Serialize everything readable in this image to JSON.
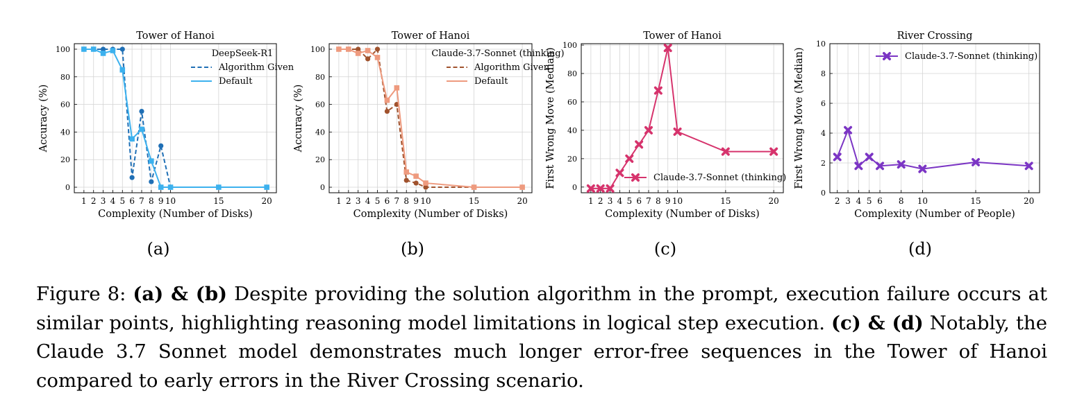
{
  "colors": {
    "a_algo": "#1f6fb5",
    "a_default": "#3cb1ee",
    "b_algo": "#a0522d",
    "b_default": "#ee9a7e",
    "c_line": "#d6336c",
    "d_line": "#7b35c4"
  },
  "subfigure_labels": [
    "(a)",
    "(b)",
    "(c)",
    "(d)"
  ],
  "caption": {
    "prefix": "Figure 8: ",
    "ab": "(a) & (b)",
    "ab_text": " Despite providing the solution algorithm in the prompt, execution failure occurs at similar points, highlighting reasoning model limitations in logical step execution. ",
    "cd": "(c) & (d)",
    "cd_text": " Notably, the Claude 3.7 Sonnet model demonstrates much longer error-free sequences in the Tower of Hanoi compared to early errors in the River Crossing scenario."
  },
  "chart_data": [
    {
      "type": "line",
      "title": "Tower of Hanoi",
      "xlabel": "Complexity (Number of Disks)",
      "ylabel": "Accuracy (%)",
      "x_ticks": [
        1,
        2,
        3,
        4,
        5,
        6,
        7,
        8,
        9,
        10,
        15,
        20
      ],
      "y_ticks": [
        0,
        20,
        40,
        60,
        80,
        100
      ],
      "xlim": [
        0,
        21
      ],
      "ylim": [
        -4,
        104
      ],
      "grid": true,
      "legend_title": "DeepSeek-R1",
      "legend_position": "top-right",
      "series": [
        {
          "name": "Algorithm Given",
          "style": "dashed",
          "marker": "circle",
          "color_key": "a_algo",
          "x": [
            1,
            2,
            3,
            4,
            5,
            6,
            7,
            8,
            9,
            10,
            15,
            20
          ],
          "y": [
            100,
            100,
            100,
            100,
            100,
            7,
            55,
            4,
            30,
            0,
            0,
            0
          ]
        },
        {
          "name": "Default",
          "style": "solid",
          "marker": "square",
          "color_key": "a_default",
          "x": [
            1,
            2,
            3,
            4,
            5,
            6,
            7,
            8,
            9,
            10,
            15,
            20
          ],
          "y": [
            100,
            100,
            97,
            99,
            85,
            35,
            42,
            19,
            0,
            0,
            0,
            0
          ]
        }
      ]
    },
    {
      "type": "line",
      "title": "Tower of Hanoi",
      "xlabel": "Complexity (Number of Disks)",
      "ylabel": "Accuracy (%)",
      "x_ticks": [
        1,
        2,
        3,
        4,
        5,
        6,
        7,
        8,
        9,
        10,
        15,
        20
      ],
      "y_ticks": [
        0,
        20,
        40,
        60,
        80,
        100
      ],
      "xlim": [
        0,
        21
      ],
      "ylim": [
        -4,
        104
      ],
      "grid": true,
      "legend_title": "Claude-3.7-Sonnet (thinking)",
      "legend_position": "top-right",
      "series": [
        {
          "name": "Algorithm Given",
          "style": "dashed",
          "marker": "circle",
          "color_key": "b_algo",
          "x": [
            1,
            2,
            3,
            4,
            5,
            6,
            7,
            8,
            9,
            10,
            15,
            20
          ],
          "y": [
            100,
            100,
            100,
            93,
            100,
            55,
            60,
            5,
            3,
            0,
            0,
            0
          ]
        },
        {
          "name": "Default",
          "style": "solid",
          "marker": "square",
          "color_key": "b_default",
          "x": [
            1,
            2,
            3,
            4,
            5,
            6,
            7,
            8,
            9,
            10,
            15,
            20
          ],
          "y": [
            100,
            100,
            97,
            99,
            94,
            63,
            72,
            11,
            8,
            3,
            0,
            0
          ]
        }
      ]
    },
    {
      "type": "line",
      "title": "Tower of Hanoi",
      "xlabel": "Complexity (Number of Disks)",
      "ylabel": "First Wrong Move (Median)",
      "x_ticks": [
        1,
        2,
        3,
        4,
        5,
        6,
        7,
        8,
        9,
        10,
        15,
        20
      ],
      "y_ticks": [
        0,
        20,
        40,
        60,
        80,
        100
      ],
      "xlim": [
        0,
        21
      ],
      "ylim": [
        -4,
        101
      ],
      "grid": true,
      "legend_position": "lower-right",
      "series": [
        {
          "name": "Claude-3.7-Sonnet (thinking)",
          "style": "solid",
          "marker": "x",
          "color_key": "c_line",
          "x": [
            1,
            2,
            3,
            4,
            5,
            6,
            7,
            8,
            9,
            10,
            15,
            20
          ],
          "y": [
            -1,
            -1,
            -1,
            10,
            20,
            30,
            40,
            68,
            98,
            39,
            25,
            25
          ]
        }
      ]
    },
    {
      "type": "line",
      "title": "River Crossing",
      "xlabel": "Complexity (Number of People)",
      "ylabel": "First Wrong Move (Median)",
      "x_ticks": [
        2,
        3,
        4,
        5,
        6,
        8,
        10,
        15,
        20
      ],
      "y_ticks": [
        0,
        2,
        4,
        6,
        8,
        10
      ],
      "xlim": [
        1.3,
        21
      ],
      "ylim": [
        0,
        10
      ],
      "grid": true,
      "legend_position": "top-right",
      "series": [
        {
          "name": "Claude-3.7-Sonnet (thinking)",
          "style": "solid",
          "marker": "x",
          "color_key": "d_line",
          "x": [
            2,
            3,
            4,
            5,
            6,
            8,
            10,
            15,
            20
          ],
          "y": [
            2.4,
            4.2,
            1.8,
            2.4,
            1.8,
            1.9,
            1.6,
            2.05,
            1.8
          ]
        }
      ]
    }
  ]
}
